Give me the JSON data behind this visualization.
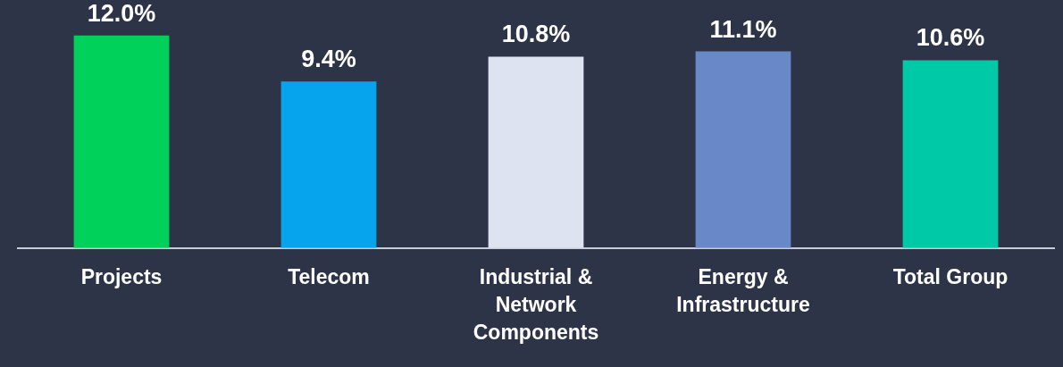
{
  "chart_data": {
    "type": "bar",
    "categories": [
      "Projects",
      "Telecom",
      "Industrial & Network Components",
      "Energy & Infrastructure",
      "Total Group"
    ],
    "values": [
      12.0,
      9.4,
      10.8,
      11.1,
      10.6
    ],
    "colors": [
      "#00d15a",
      "#07a4ee",
      "#dde3f1",
      "#6888c8",
      "#00c9a7"
    ],
    "value_labels": [
      "12.0%",
      "9.4%",
      "10.8%",
      "11.1%",
      "10.6%"
    ],
    "tick_labels": "x",
    "grid": false,
    "legend": false
  }
}
